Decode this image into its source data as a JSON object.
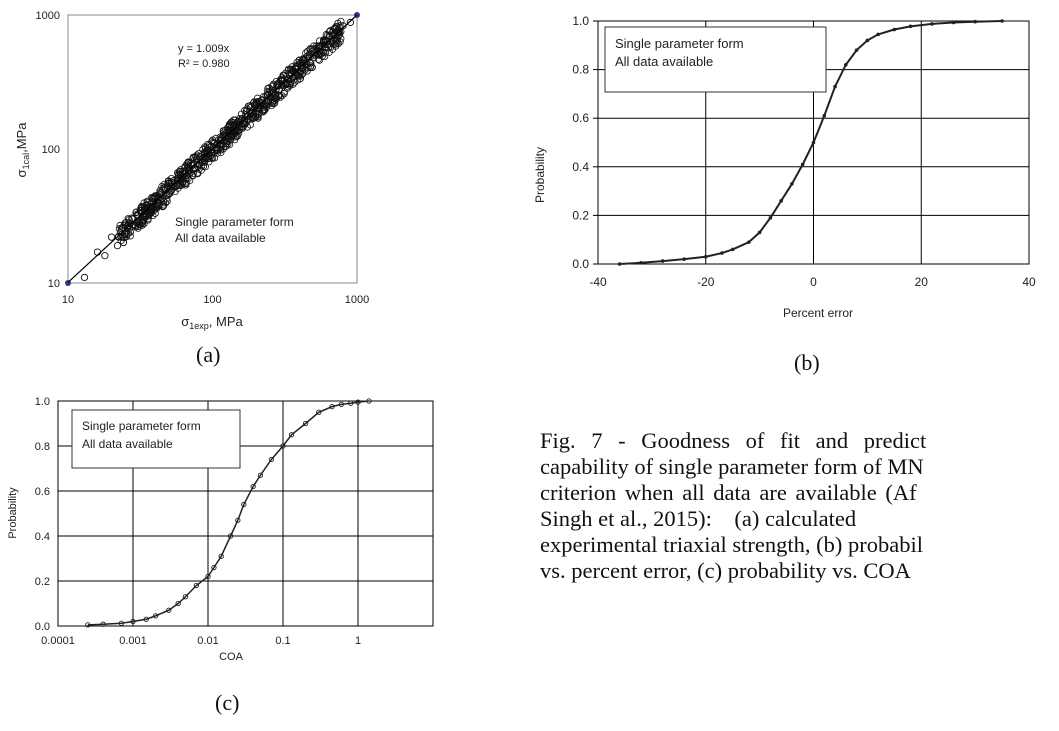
{
  "panel_labels": {
    "a": "(a)",
    "b": "(b)",
    "c": "(c)"
  },
  "caption": {
    "line1": "Fig. 7 - Goodness of fit and predict",
    "line2": "capability of single parameter form of MN",
    "line3": "criterion when all data are available (Af",
    "line4": "Singh et al., 2015):    (a) calculated",
    "line5": "experimental triaxial strength, (b) probabil",
    "line6": "vs. percent error, (c) probability vs. COA"
  },
  "chart_data": [
    {
      "type": "scatter",
      "id": "a",
      "xlabel": "σ1exp, MPa",
      "ylabel": "σ1cal,MPa",
      "xscale": "log",
      "yscale": "log",
      "xlim": [
        10,
        1000
      ],
      "ylim": [
        10,
        1000
      ],
      "x_ticks": [
        "10",
        "100",
        "1000"
      ],
      "y_ticks": [
        "10",
        "100",
        "1000"
      ],
      "annotations": [
        "y = 1.009x",
        "R² = 0.980",
        "Single parameter form",
        "All data available"
      ],
      "fit_line": {
        "slope": 1.009,
        "r2": 0.98,
        "x": [
          10,
          1000
        ],
        "y": [
          10.09,
          1009
        ]
      },
      "series": [
        {
          "x": [
            13,
            16,
            18,
            20,
            22,
            24,
            25,
            27,
            28,
            30,
            32,
            34,
            35,
            37,
            38,
            40,
            42,
            44,
            45,
            47,
            48,
            50,
            52,
            54,
            55,
            57,
            60,
            62,
            64,
            66,
            68,
            70,
            72,
            75,
            78,
            80,
            82,
            85,
            88,
            90,
            92,
            95,
            98,
            100,
            103,
            106,
            110,
            113,
            116,
            120,
            124,
            128,
            132,
            136,
            140,
            145,
            150,
            155,
            160,
            165,
            170,
            175,
            180,
            190,
            200,
            210,
            220,
            230,
            240,
            250,
            260,
            270,
            280,
            290,
            300,
            320,
            340,
            360,
            380,
            400,
            420,
            450,
            480,
            500,
            550,
            600,
            650,
            700,
            800,
            900
          ],
          "y": [
            11,
            17,
            16,
            22,
            19,
            26,
            27,
            24,
            30,
            28,
            35,
            31,
            38,
            34,
            40,
            44,
            39,
            47,
            43,
            50,
            45,
            55,
            49,
            58,
            52,
            60,
            64,
            57,
            68,
            63,
            72,
            66,
            76,
            71,
            83,
            76,
            88,
            80,
            94,
            86,
            97,
            91,
            104,
            95,
            110,
            100,
            116,
            108,
            121,
            114,
            131,
            122,
            138,
            129,
            147,
            137,
            158,
            146,
            168,
            155,
            180,
            164,
            191,
            185,
            212,
            198,
            233,
            218,
            252,
            240,
            275,
            258,
            295,
            278,
            320,
            305,
            360,
            340,
            400,
            380,
            440,
            425,
            510,
            480,
            580,
            570,
            690,
            660,
            830,
            880
          ]
        }
      ]
    },
    {
      "type": "line",
      "id": "b",
      "xlabel": "Percent error",
      "ylabel": "Probability",
      "xlim": [
        -40,
        40
      ],
      "ylim": [
        0,
        1.0
      ],
      "x_ticks": [
        "-40",
        "-20",
        "0",
        "20",
        "40"
      ],
      "y_ticks": [
        "0.0",
        "0.2",
        "0.4",
        "0.6",
        "0.8",
        "1.0"
      ],
      "annotations": [
        "Single parameter form",
        "All data available"
      ],
      "series": [
        {
          "x": [
            -36,
            -32,
            -28,
            -24,
            -20,
            -17,
            -15,
            -12,
            -10,
            -8,
            -6,
            -4,
            -2,
            0,
            2,
            4,
            6,
            8,
            10,
            12,
            15,
            18,
            22,
            26,
            30,
            35
          ],
          "y": [
            0.0,
            0.005,
            0.012,
            0.02,
            0.03,
            0.045,
            0.06,
            0.09,
            0.13,
            0.19,
            0.26,
            0.33,
            0.41,
            0.5,
            0.61,
            0.73,
            0.82,
            0.88,
            0.92,
            0.945,
            0.965,
            0.978,
            0.988,
            0.994,
            0.997,
            1.0
          ]
        }
      ]
    },
    {
      "type": "line",
      "id": "c",
      "xlabel": "COA",
      "ylabel": "Probability",
      "xscale": "log",
      "xlim": [
        0.0001,
        10
      ],
      "ylim": [
        0,
        1.0
      ],
      "x_ticks": [
        "0.0001",
        "0.001",
        "0.01",
        "0.1",
        "1"
      ],
      "y_ticks": [
        "0.0",
        "0.2",
        "0.4",
        "0.6",
        "0.8",
        "1.0"
      ],
      "annotations": [
        "Single parameter form",
        "All data available"
      ],
      "series": [
        {
          "x": [
            0.00025,
            0.0004,
            0.0007,
            0.001,
            0.0015,
            0.002,
            0.003,
            0.004,
            0.005,
            0.007,
            0.01,
            0.012,
            0.015,
            0.02,
            0.025,
            0.03,
            0.04,
            0.05,
            0.07,
            0.1,
            0.13,
            0.2,
            0.3,
            0.45,
            0.6,
            0.8,
            1.0,
            1.4
          ],
          "y": [
            0.005,
            0.008,
            0.012,
            0.02,
            0.03,
            0.045,
            0.07,
            0.1,
            0.13,
            0.18,
            0.22,
            0.26,
            0.31,
            0.4,
            0.47,
            0.54,
            0.62,
            0.67,
            0.74,
            0.8,
            0.85,
            0.9,
            0.95,
            0.975,
            0.985,
            0.99,
            0.995,
            1.0
          ]
        }
      ]
    }
  ]
}
